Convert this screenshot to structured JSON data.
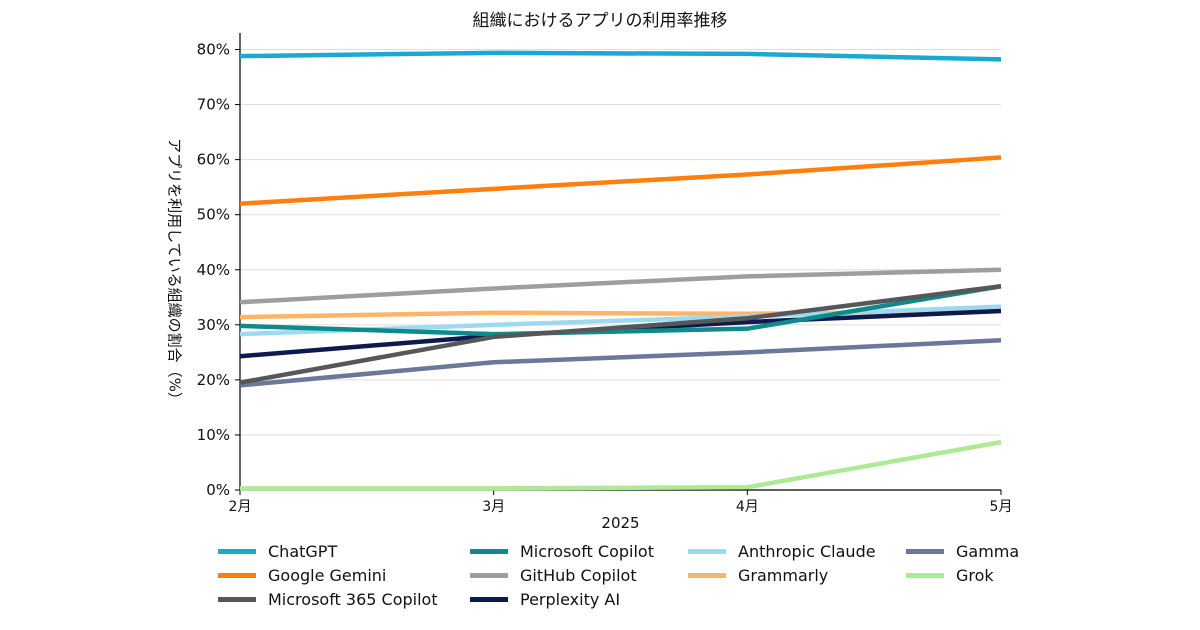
{
  "chart_data": {
    "type": "line",
    "title": "組織におけるアプリの利用率推移",
    "xlabel": "2025",
    "ylabel": "アプリを利用している組織の割合（%）",
    "categories": [
      "2月",
      "3月",
      "4月",
      "5月"
    ],
    "ylim": [
      0,
      83
    ],
    "yticks": [
      0,
      10,
      20,
      30,
      40,
      50,
      60,
      70,
      80
    ],
    "ytick_labels": [
      "0%",
      "10%",
      "20%",
      "30%",
      "40%",
      "50%",
      "60%",
      "70%",
      "80%"
    ],
    "grid": true,
    "legend_position": "bottom",
    "series": [
      {
        "name": "ChatGPT",
        "color": "#1ba9d3",
        "values": [
          78.8,
          79.4,
          79.2,
          78.2
        ]
      },
      {
        "name": "Google Gemini",
        "color": "#ff7f0e",
        "values": [
          52.0,
          54.7,
          57.3,
          60.4
        ]
      },
      {
        "name": "Microsoft 365 Copilot",
        "color": "#555759",
        "values": [
          19.5,
          27.8,
          31.2,
          37.0
        ]
      },
      {
        "name": "Microsoft Copilot",
        "color": "#0f8a8c",
        "values": [
          29.8,
          28.3,
          29.3,
          37.0
        ]
      },
      {
        "name": "GitHub Copilot",
        "color": "#9e9e9e",
        "values": [
          34.1,
          36.6,
          38.8,
          40.0
        ]
      },
      {
        "name": "Perplexity AI",
        "color": "#0d1a4d",
        "values": [
          24.3,
          28.0,
          30.5,
          32.5
        ]
      },
      {
        "name": "Anthropic Claude",
        "color": "#9ddaf0",
        "values": [
          28.3,
          30.0,
          31.5,
          33.3
        ]
      },
      {
        "name": "Grammarly",
        "color": "#ffb466",
        "values": [
          31.4,
          32.2,
          32.0,
          32.5
        ]
      },
      {
        "name": "Gamma",
        "color": "#6b779b",
        "values": [
          19.0,
          23.2,
          25.0,
          27.2
        ]
      },
      {
        "name": "Grok",
        "color": "#aeea94",
        "values": [
          0.3,
          0.3,
          0.5,
          8.7
        ]
      }
    ],
    "legend_order": [
      "ChatGPT",
      "Google Gemini",
      "Microsoft 365 Copilot",
      "Microsoft Copilot",
      "GitHub Copilot",
      "Perplexity AI",
      "Anthropic Claude",
      "Grammarly",
      "Gamma",
      "Grok"
    ]
  }
}
